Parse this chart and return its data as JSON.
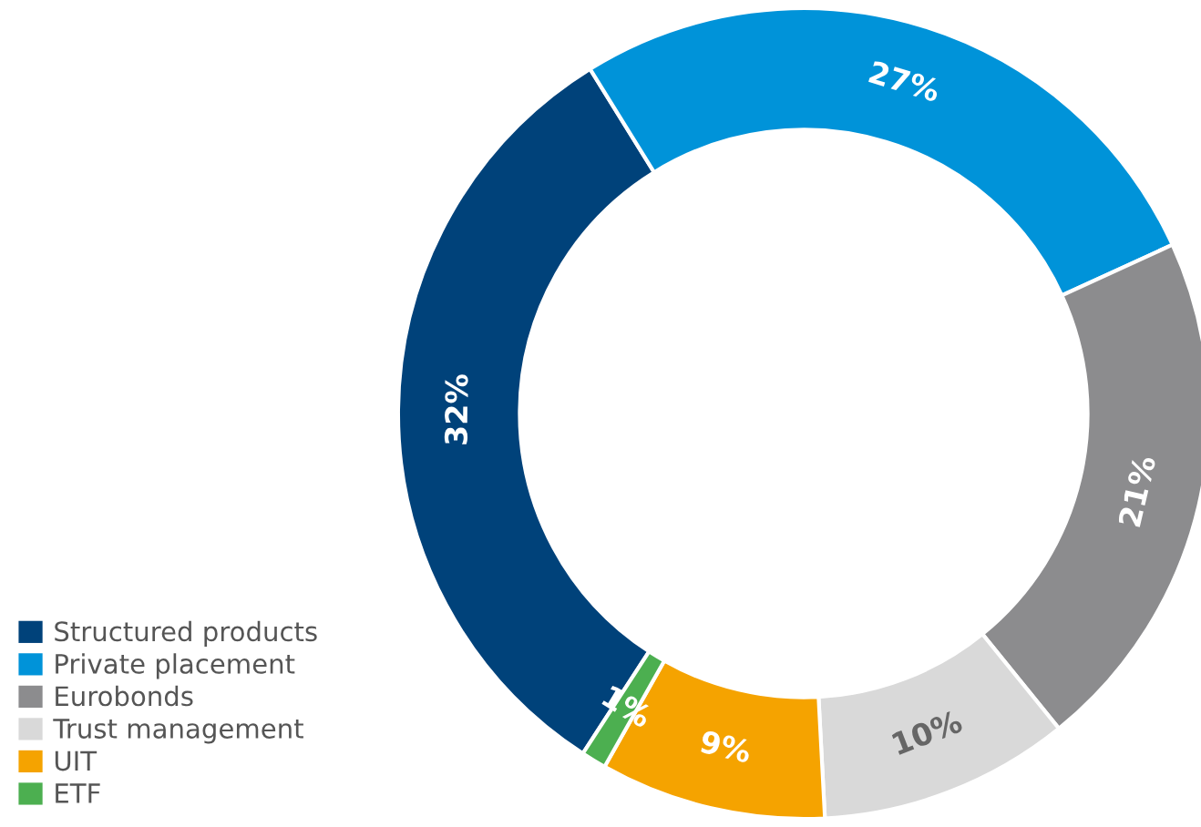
{
  "chart_data": {
    "type": "donut",
    "categories": [
      "Structured products",
      "Private placement",
      "Eurobonds",
      "Trust management",
      "UIT",
      "ETF"
    ],
    "values": [
      32,
      27,
      21,
      10,
      9,
      1
    ],
    "colors": [
      "#00427a",
      "#0093d9",
      "#8c8c8e",
      "#d9d9d9",
      "#f5a300",
      "#4caf50"
    ],
    "value_labels": [
      "32%",
      "27%",
      "21%",
      "10%",
      "9%",
      "1%"
    ],
    "legend": "bottom left"
  }
}
